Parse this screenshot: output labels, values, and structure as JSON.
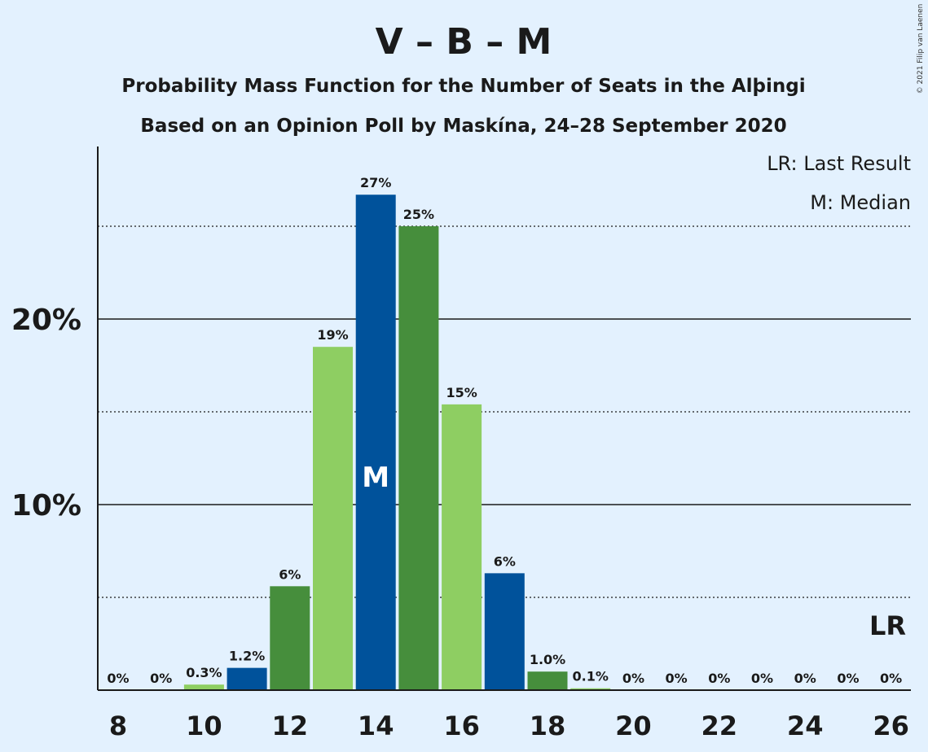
{
  "chart_data": {
    "type": "bar",
    "title": "V – B – M",
    "subtitle1": "Probability Mass Function for the Number of Seats in the Alþingi",
    "subtitle2": "Based on an Opinion Poll by Maskína, 24–28 September 2020",
    "copyright": "© 2021 Filip van Laenen",
    "legend": [
      "LR: Last Result",
      "M: Median"
    ],
    "legend_position": "top-right",
    "x": [
      8,
      9,
      10,
      11,
      12,
      13,
      14,
      15,
      16,
      17,
      18,
      19,
      20,
      21,
      22,
      23,
      24,
      25,
      26
    ],
    "values": [
      0,
      0,
      0.3,
      1.2,
      5.6,
      18.5,
      26.7,
      25.0,
      15.4,
      6.3,
      1.0,
      0.1,
      0,
      0,
      0,
      0,
      0,
      0,
      0
    ],
    "data_labels": [
      "0%",
      "0%",
      "0.3%",
      "1.2%",
      "6%",
      "19%",
      "27%",
      "25%",
      "15%",
      "6%",
      "1.0%",
      "0.1%",
      "0%",
      "0%",
      "0%",
      "0%",
      "0%",
      "0%",
      "0%"
    ],
    "x_tick_labels": [
      "8",
      "10",
      "12",
      "14",
      "16",
      "18",
      "20",
      "22",
      "24",
      "26"
    ],
    "y_tick_labels": [
      "10%",
      "20%"
    ],
    "ylim": [
      0,
      29
    ],
    "major_gridlines": [
      10,
      20
    ],
    "minor_gridlines": [
      5,
      15,
      25
    ],
    "median": 14,
    "median_label": "M",
    "last_result": 26,
    "last_result_label": "LR",
    "colors": {
      "light_green": "#8ece62",
      "dark_green": "#468e3c",
      "blue": "#00529b",
      "background": "#e3f1fe"
    }
  }
}
